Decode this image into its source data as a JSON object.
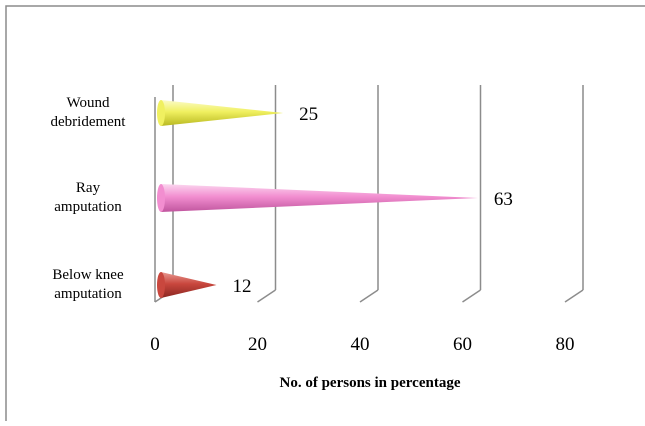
{
  "chart_data": {
    "type": "bar",
    "style": "3d-cone-horizontal",
    "categories": [
      [
        "Wound",
        "debridement"
      ],
      [
        "Ray",
        "amputation"
      ],
      [
        "Below knee",
        "amputation"
      ]
    ],
    "values": [
      25,
      63,
      12
    ],
    "value_labels": [
      "25",
      "63",
      "12"
    ],
    "colors": [
      "#f0f060",
      "#f28ed0",
      "#c9473e"
    ],
    "x_ticks": [
      "0",
      "20",
      "40",
      "60",
      "80"
    ],
    "xlim": [
      0,
      80
    ],
    "xlabel": "No. of persons in percentage",
    "ylabel": "",
    "title": "",
    "grid": true,
    "legend": "none"
  }
}
